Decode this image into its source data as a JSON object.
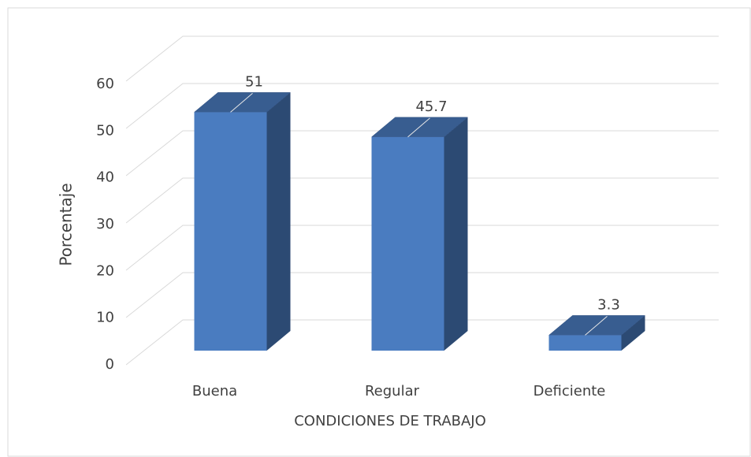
{
  "chart_data": {
    "type": "bar3d",
    "categories": [
      "Buena",
      "Regular",
      "Deficiente"
    ],
    "values": [
      51,
      45.7,
      3.3
    ],
    "color": "#4a7cc0",
    "x_label": "CONDICIONES DE TRABAJO",
    "y_label": "Porcentaje",
    "ylim": [
      0,
      60
    ],
    "yticks": [
      0,
      10,
      20,
      30,
      40,
      50,
      60
    ],
    "grid": true
  }
}
